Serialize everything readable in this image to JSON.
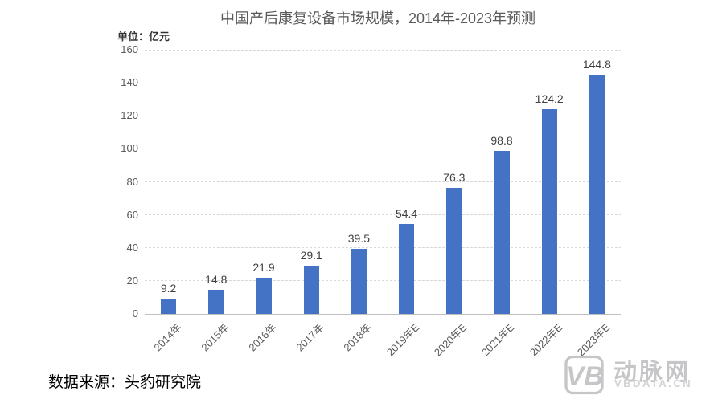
{
  "chart_data": {
    "type": "bar",
    "title": "中国产后康复设备市场规模，2014年-2023年预测",
    "unit_label": "单位：亿元",
    "categories": [
      "2014年",
      "2015年",
      "2016年",
      "2017年",
      "2018年",
      "2019年E",
      "2020年E",
      "2021年E",
      "2022年E",
      "2023年E"
    ],
    "values": [
      9.2,
      14.8,
      21.9,
      29.1,
      39.5,
      54.4,
      76.3,
      98.8,
      124.2,
      144.8
    ],
    "xlabel": "",
    "ylabel": "",
    "ylim": [
      0,
      160
    ],
    "ytick_step": 20,
    "yticks": [
      0,
      20,
      40,
      60,
      80,
      100,
      120,
      140,
      160
    ],
    "grid": true,
    "legend": "none",
    "bar_color": "#4472c4",
    "gridline_color": "#d9d9d9",
    "axis_text_color": "#595959",
    "value_label_color": "#404040"
  },
  "source": {
    "text": "数据来源：头豹研究院"
  },
  "logo": {
    "mark": "VB",
    "name": "动脉网",
    "domain": "VBDATA.CN",
    "color": "#c6c6c8"
  }
}
